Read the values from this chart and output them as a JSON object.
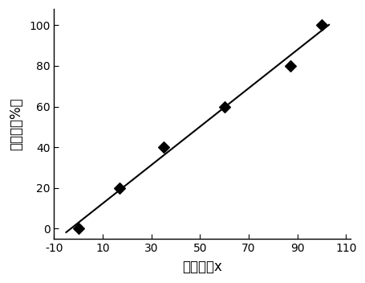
{
  "x_data": [
    0,
    17,
    35,
    60,
    87,
    100
  ],
  "y_data": [
    0,
    20,
    40,
    60,
    80,
    100
  ],
  "xlabel": "色度坐标x",
  "ylabel": "棉含量（%）",
  "xlim": [
    -10,
    112
  ],
  "ylim": [
    -5,
    108
  ],
  "xticks": [
    -10,
    10,
    30,
    50,
    70,
    90,
    110
  ],
  "yticks": [
    0,
    20,
    40,
    60,
    80,
    100
  ],
  "marker_color": "#000000",
  "line_color": "#000000",
  "background_color": "#ffffff",
  "axes_background": "#ffffff",
  "marker_size": 7,
  "line_width": 1.5,
  "xlabel_fontsize": 12,
  "ylabel_fontsize": 12,
  "tick_fontsize": 10
}
